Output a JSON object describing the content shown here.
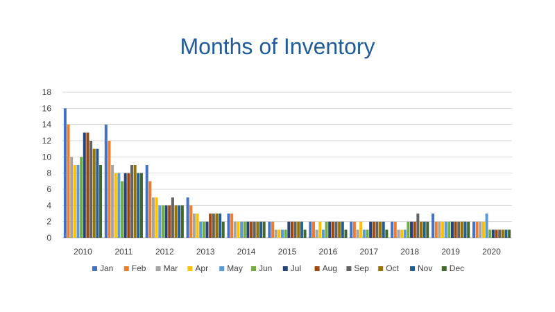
{
  "title": "Months of Inventory",
  "colors": {
    "title": "#1f5c99",
    "grid": "#d9d9d9",
    "axis": "#bfbfbf"
  },
  "chart_data": {
    "type": "bar",
    "title": "Months of Inventory",
    "xlabel": "",
    "ylabel": "",
    "ylim": [
      0,
      18
    ],
    "yticks": [
      0,
      2,
      4,
      6,
      8,
      10,
      12,
      14,
      16,
      18
    ],
    "grid": true,
    "legend_position": "bottom",
    "categories": [
      "2010",
      "2011",
      "2012",
      "2013",
      "2014",
      "2015",
      "2016",
      "2017",
      "2018",
      "2019",
      "2020"
    ],
    "series": [
      {
        "name": "Jan",
        "color": "#4472c4",
        "values": [
          16,
          14,
          9,
          5,
          3,
          2,
          2,
          2,
          2,
          3,
          2
        ]
      },
      {
        "name": "Feb",
        "color": "#ed7d31",
        "values": [
          14,
          12,
          7,
          4,
          3,
          2,
          2,
          2,
          2,
          2,
          2
        ]
      },
      {
        "name": "Mar",
        "color": "#a5a5a5",
        "values": [
          10,
          9,
          5,
          3,
          2,
          1,
          1,
          1,
          1,
          2,
          2
        ]
      },
      {
        "name": "Apr",
        "color": "#ffc000",
        "values": [
          9,
          8,
          5,
          3,
          2,
          1,
          2,
          2,
          1,
          2,
          2
        ]
      },
      {
        "name": "May",
        "color": "#5b9bd5",
        "values": [
          9,
          8,
          4,
          2,
          2,
          1,
          1,
          1,
          1,
          2,
          3
        ]
      },
      {
        "name": "Jun",
        "color": "#70ad47",
        "values": [
          10,
          7,
          4,
          2,
          2,
          1,
          2,
          1,
          2,
          2,
          1
        ]
      },
      {
        "name": "Jul",
        "color": "#264478",
        "values": [
          13,
          8,
          4,
          2,
          2,
          2,
          2,
          2,
          2,
          2,
          1
        ]
      },
      {
        "name": "Aug",
        "color": "#9e480e",
        "values": [
          13,
          8,
          4,
          3,
          2,
          2,
          2,
          2,
          2,
          2,
          1
        ]
      },
      {
        "name": "Sep",
        "color": "#636363",
        "values": [
          12,
          9,
          5,
          3,
          2,
          2,
          2,
          2,
          3,
          2,
          1
        ]
      },
      {
        "name": "Oct",
        "color": "#997300",
        "values": [
          11,
          9,
          4,
          3,
          2,
          2,
          2,
          2,
          2,
          2,
          1
        ]
      },
      {
        "name": "Nov",
        "color": "#255e91",
        "values": [
          11,
          8,
          4,
          3,
          2,
          2,
          2,
          2,
          2,
          2,
          1
        ]
      },
      {
        "name": "Dec",
        "color": "#43682b",
        "values": [
          9,
          8,
          4,
          2,
          2,
          1,
          1,
          1,
          2,
          2,
          1
        ]
      }
    ]
  }
}
